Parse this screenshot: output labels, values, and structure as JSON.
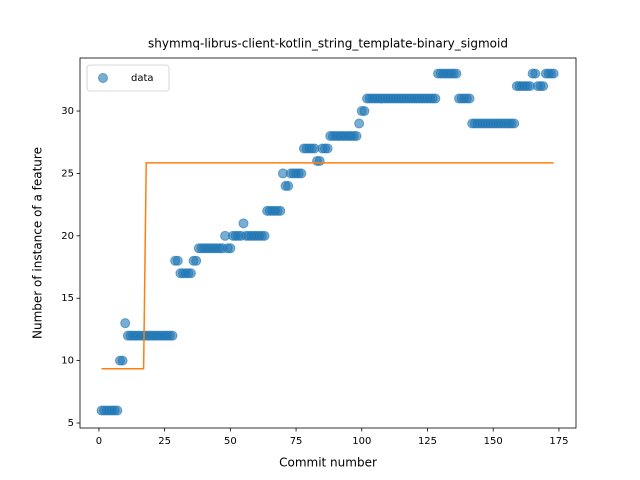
{
  "chart_data": {
    "type": "scatter",
    "title": "shymmq-librus-client-kotlin_string_template-binary_sigmoid",
    "xlabel": "Commit number",
    "ylabel": "Number of instance of a feature",
    "xlim": [
      -7.2,
      181.5
    ],
    "ylim": [
      4.6,
      34.25
    ],
    "xticks": [
      0,
      25,
      50,
      75,
      100,
      125,
      150,
      175
    ],
    "yticks": [
      5,
      10,
      15,
      20,
      25,
      30
    ],
    "legend": "upper left",
    "series": [
      {
        "name": "data",
        "type": "scatter",
        "color": "#1f77b4",
        "x": [
          1,
          2,
          3,
          4,
          5,
          6,
          7,
          8,
          9,
          10,
          11,
          12,
          13,
          14,
          15,
          16,
          17,
          18,
          19,
          20,
          21,
          22,
          23,
          24,
          25,
          26,
          27,
          28,
          29,
          30,
          31,
          32,
          33,
          34,
          35,
          36,
          37,
          38,
          39,
          40,
          41,
          42,
          43,
          44,
          45,
          46,
          47,
          48,
          49,
          50,
          51,
          52,
          53,
          54,
          55,
          56,
          57,
          58,
          59,
          60,
          61,
          62,
          63,
          64,
          65,
          66,
          67,
          68,
          69,
          70,
          71,
          72,
          73,
          74,
          75,
          76,
          77,
          78,
          79,
          80,
          81,
          82,
          83,
          84,
          85,
          86,
          87,
          88,
          89,
          90,
          91,
          92,
          93,
          94,
          95,
          96,
          97,
          98,
          99,
          100,
          101,
          102,
          103,
          104,
          105,
          106,
          107,
          108,
          109,
          110,
          111,
          112,
          113,
          114,
          115,
          116,
          117,
          118,
          119,
          120,
          121,
          122,
          123,
          124,
          125,
          126,
          127,
          128,
          129,
          130,
          131,
          132,
          133,
          134,
          135,
          136,
          137,
          138,
          139,
          140,
          141,
          142,
          143,
          144,
          145,
          146,
          147,
          148,
          149,
          150,
          151,
          152,
          153,
          154,
          155,
          156,
          157,
          158,
          159,
          160,
          161,
          162,
          163,
          164,
          165,
          166,
          167,
          168,
          169,
          170,
          171,
          172,
          173
        ],
        "values": [
          6,
          6,
          6,
          6,
          6,
          6,
          6,
          10,
          10,
          13,
          12,
          12,
          12,
          12,
          12,
          12,
          12,
          12,
          12,
          12,
          12,
          12,
          12,
          12,
          12,
          12,
          12,
          12,
          18,
          18,
          17,
          17,
          17,
          17,
          17,
          18,
          18,
          19,
          19,
          19,
          19,
          19,
          19,
          19,
          19,
          19,
          19,
          20,
          19,
          19,
          20,
          20,
          20,
          20,
          21,
          20,
          20,
          20,
          20,
          20,
          20,
          20,
          20,
          22,
          22,
          22,
          22,
          22,
          22,
          25,
          24,
          24,
          25,
          25,
          25,
          25,
          25,
          27,
          27,
          27,
          27,
          27,
          26,
          26,
          27,
          27,
          27,
          28,
          28,
          28,
          28,
          28,
          28,
          28,
          28,
          28,
          28,
          28,
          29,
          30,
          30,
          31,
          31,
          31,
          31,
          31,
          31,
          31,
          31,
          31,
          31,
          31,
          31,
          31,
          31,
          31,
          31,
          31,
          31,
          31,
          31,
          31,
          31,
          31,
          31,
          31,
          31,
          31,
          33,
          33,
          33,
          33,
          33,
          33,
          33,
          33,
          31,
          31,
          31,
          31,
          31,
          29,
          29,
          29,
          29,
          29,
          29,
          29,
          29,
          29,
          29,
          29,
          29,
          29,
          29,
          29,
          29,
          29,
          32,
          32,
          32,
          32,
          32,
          32,
          33,
          33,
          32,
          32,
          32,
          33,
          33,
          33,
          33
        ]
      },
      {
        "type": "line",
        "color": "#ff7f0e",
        "x": [
          1,
          17,
          18,
          173
        ],
        "values": [
          9.35,
          9.35,
          25.85,
          25.85
        ]
      }
    ]
  }
}
